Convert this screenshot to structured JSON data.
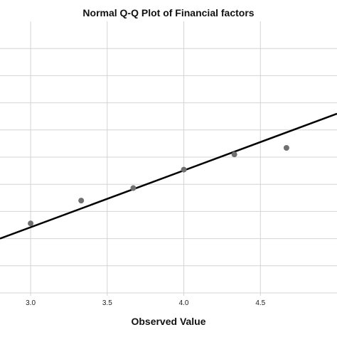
{
  "chart_data": {
    "type": "scatter",
    "title": "Normal Q-Q Plot of Financial factors",
    "xlabel": "Observed Value",
    "ylabel": "",
    "xlim": [
      2.8,
      5.0
    ],
    "ylim": [
      -2.0,
      3.0
    ],
    "grid": true,
    "x_ticks": [
      3.0,
      3.5,
      4.0,
      4.5
    ],
    "x_tick_labels": [
      "3.0",
      "3.5",
      "4.0",
      "4.5"
    ],
    "y_grid_lines": [
      -1.5,
      -1.0,
      -0.5,
      0.0,
      0.5,
      1.0,
      1.5,
      2.0,
      2.5
    ],
    "points": [
      {
        "x": 3.0,
        "y": -0.72
      },
      {
        "x": 3.33,
        "y": -0.3
      },
      {
        "x": 3.67,
        "y": -0.07
      },
      {
        "x": 4.0,
        "y": 0.27
      },
      {
        "x": 4.33,
        "y": 0.55
      },
      {
        "x": 4.67,
        "y": 0.67
      }
    ],
    "reference_line": {
      "x": [
        2.8,
        5.0
      ],
      "y": [
        -1.0,
        1.3
      ]
    },
    "colors": {
      "points": "#707070",
      "line": "#000000",
      "grid": "#d4d4d4"
    }
  }
}
